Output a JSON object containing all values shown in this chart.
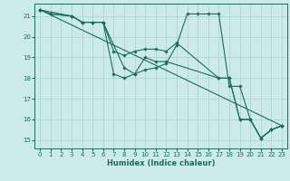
{
  "xlabel": "Humidex (Indice chaleur)",
  "ylabel": "",
  "bg_color": "#cceaea",
  "grid_color": "#add4d4",
  "line_color": "#1a6b60",
  "xlim": [
    -0.5,
    23.5
  ],
  "ylim": [
    14.6,
    21.6
  ],
  "yticks": [
    15,
    16,
    17,
    18,
    19,
    20,
    21
  ],
  "xticks": [
    0,
    1,
    2,
    3,
    4,
    5,
    6,
    7,
    8,
    9,
    10,
    11,
    12,
    13,
    14,
    15,
    16,
    17,
    18,
    19,
    20,
    21,
    22,
    23
  ],
  "lines": [
    {
      "x": [
        0,
        1,
        3,
        4,
        5,
        6,
        8,
        9,
        10,
        11,
        12,
        13,
        14,
        15,
        16,
        17,
        18,
        19,
        20,
        21,
        22,
        23
      ],
      "y": [
        21.3,
        21.1,
        21.0,
        20.7,
        20.7,
        20.7,
        18.5,
        18.2,
        18.4,
        18.5,
        18.7,
        19.6,
        21.1,
        21.1,
        21.1,
        21.1,
        17.6,
        17.6,
        16.0,
        15.1,
        15.5,
        15.7
      ]
    },
    {
      "x": [
        0,
        3,
        4,
        5,
        6,
        7,
        8,
        9,
        10,
        11,
        12,
        13,
        17,
        18,
        19,
        20,
        21,
        22,
        23
      ],
      "y": [
        21.3,
        21.0,
        20.7,
        20.7,
        20.7,
        19.3,
        19.1,
        19.3,
        19.4,
        19.4,
        19.3,
        19.7,
        18.0,
        18.0,
        16.0,
        16.0,
        15.1,
        15.5,
        15.7
      ]
    },
    {
      "x": [
        0,
        1,
        3,
        4,
        5,
        6,
        7,
        8,
        9,
        10,
        11,
        12,
        17,
        18,
        19,
        20,
        21,
        22,
        23
      ],
      "y": [
        21.3,
        21.1,
        21.0,
        20.7,
        20.7,
        20.7,
        18.2,
        18.0,
        18.2,
        19.0,
        18.8,
        18.8,
        18.0,
        18.0,
        16.0,
        16.0,
        15.1,
        15.5,
        15.7
      ]
    },
    {
      "x": [
        0,
        23
      ],
      "y": [
        21.3,
        15.7
      ]
    }
  ]
}
